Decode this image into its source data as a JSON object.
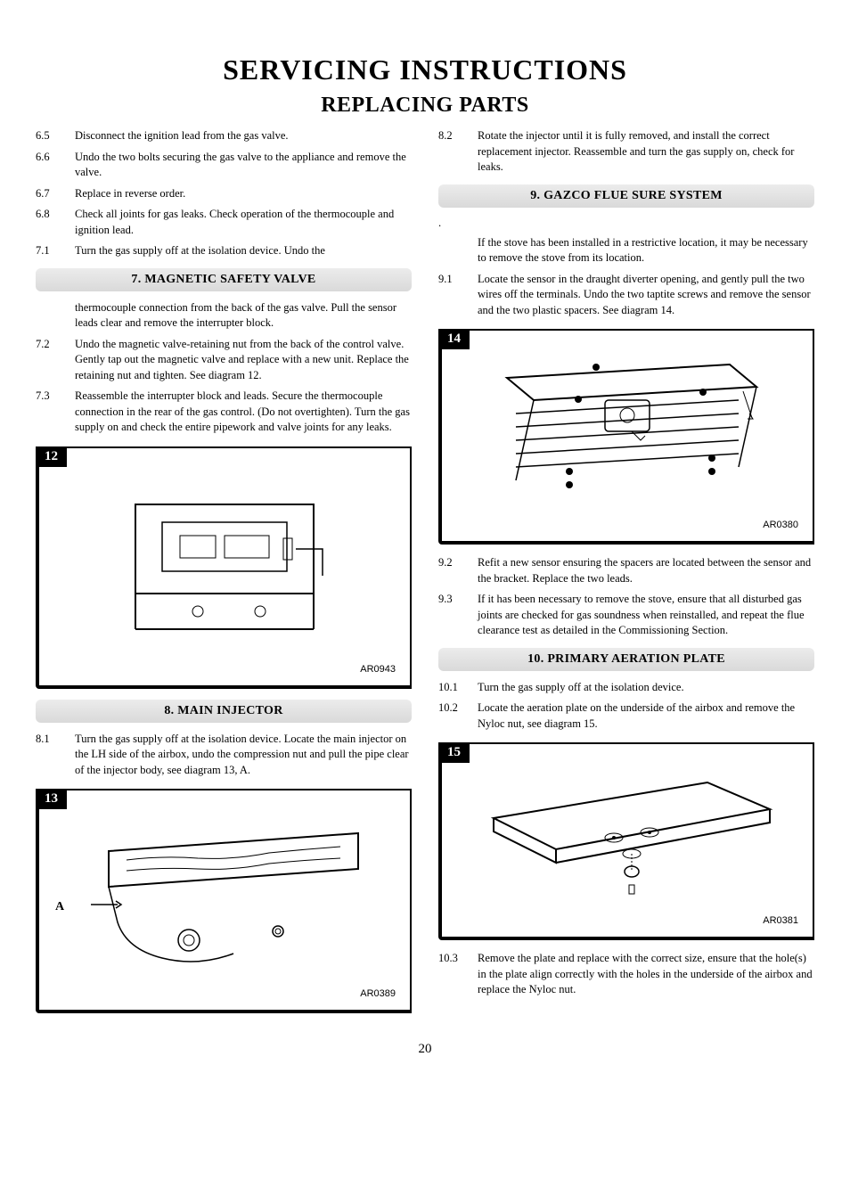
{
  "title": "SERVICING INSTRUCTIONS",
  "subtitle": "REPLACING PARTS",
  "page_num": "20",
  "left": {
    "items_pre": [
      {
        "num": "6.5",
        "text": "Disconnect the ignition lead from the gas valve."
      },
      {
        "num": "6.6",
        "text": "Undo the two bolts securing the gas valve to the appliance and remove the valve."
      },
      {
        "num": "6.7",
        "text": "Replace in reverse order."
      },
      {
        "num": "6.8",
        "text": "Check all joints for gas leaks. Check operation of the thermocouple and ignition lead."
      },
      {
        "num": "7.1",
        "text": "Turn the gas supply off at the isolation device. Undo the"
      }
    ],
    "section7": "7. MAGNETIC SAFETY VALVE",
    "section7_cont": "thermocouple connection from the back of the gas valve. Pull the sensor leads clear and remove the interrupter block.",
    "items_7": [
      {
        "num": "7.2",
        "text": "Undo the magnetic valve-retaining nut from the back of the control valve. Gently tap out the magnetic valve and replace with a new unit. Replace the retaining nut and tighten. See diagram 12."
      },
      {
        "num": "7.3",
        "text": "Reassemble the interrupter block and leads. Secure the thermocouple connection in the rear of the gas control. (Do not overtighten). Turn the gas supply on and check the entire pipework and valve joints for any leaks."
      }
    ],
    "diagram12": {
      "num": "12",
      "ref": "AR0943"
    },
    "section8": "8. MAIN INJECTOR",
    "items_8": [
      {
        "num": "8.1",
        "text": "Turn the gas supply off at the isolation device. Locate the main injector on the LH side of the airbox, undo the compression nut and pull the pipe clear of the injector body, see diagram 13, A."
      }
    ],
    "diagram13": {
      "num": "13",
      "ref": "AR0389",
      "label_a": "A"
    }
  },
  "right": {
    "items_82": [
      {
        "num": "8.2",
        "text": "Rotate the injector until it is fully removed, and install the correct replacement injector. Reassemble and turn the gas supply on, check for leaks."
      }
    ],
    "section9": "9. GAZCO FLUE SURE SYSTEM",
    "dot": ".",
    "section9_intro": "If the stove has been installed in a restrictive location, it may be necessary to remove the stove from its location.",
    "items_9a": [
      {
        "num": "9.1",
        "text": "Locate the sensor in the draught diverter opening, and gently pull the two wires off the terminals. Undo the two taptite screws and remove the sensor and the two plastic spacers. See diagram 14."
      }
    ],
    "diagram14": {
      "num": "14",
      "ref": "AR0380"
    },
    "items_9b": [
      {
        "num": "9.2",
        "text": "Refit a new sensor ensuring the spacers are located between the sensor and the bracket. Replace the two leads."
      },
      {
        "num": "9.3",
        "text": "If it has been necessary to remove the stove, ensure that all disturbed gas joints are checked for gas soundness when reinstalled, and repeat the flue clearance test as detailed in the Commissioning Section."
      }
    ],
    "section10": "10. PRIMARY AERATION PLATE",
    "items_10a": [
      {
        "num": "10.1",
        "text": "Turn the gas supply off at the isolation device."
      },
      {
        "num": "10.2",
        "text": "Locate the aeration plate on the underside of the airbox and remove the Nyloc nut, see diagram 15."
      }
    ],
    "diagram15": {
      "num": "15",
      "ref": "AR0381"
    },
    "items_10b": [
      {
        "num": "10.3",
        "text": "Remove the plate and replace with the correct size, ensure that the hole(s) in the plate align correctly with the holes in the underside of the airbox and replace the Nyloc nut."
      }
    ]
  }
}
